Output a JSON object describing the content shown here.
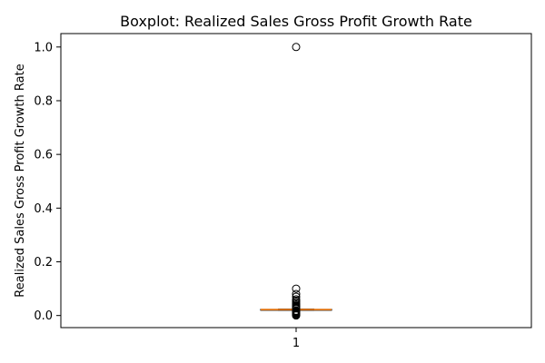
{
  "chart_data": {
    "type": "boxplot",
    "title": "Boxplot:  Realized Sales Gross Profit Growth Rate",
    "xlabel": "",
    "ylabel": "Realized Sales Gross Profit Growth Rate",
    "categories": [
      "1"
    ],
    "ylim": [
      -0.045,
      1.05
    ],
    "yticks": [
      0.0,
      0.2,
      0.4,
      0.6,
      0.8,
      1.0
    ],
    "ytick_labels": [
      "0.0",
      "0.2",
      "0.4",
      "0.6",
      "0.8",
      "1.0"
    ],
    "grid": false,
    "series": [
      {
        "q1": 0.021,
        "median": 0.022,
        "q3": 0.023,
        "whisker_low": 0.02,
        "whisker_high": 0.024,
        "outliers": [
          0.0,
          0.003,
          0.005,
          0.008,
          0.01,
          0.012,
          0.014,
          0.016,
          0.018,
          0.027,
          0.03,
          0.033,
          0.036,
          0.04,
          0.045,
          0.05,
          0.055,
          0.06,
          0.07,
          0.08,
          0.1,
          1.0
        ]
      }
    ],
    "colors": {
      "box": "#000000",
      "median": "#ff7f0e",
      "outlier": "#000000"
    }
  }
}
